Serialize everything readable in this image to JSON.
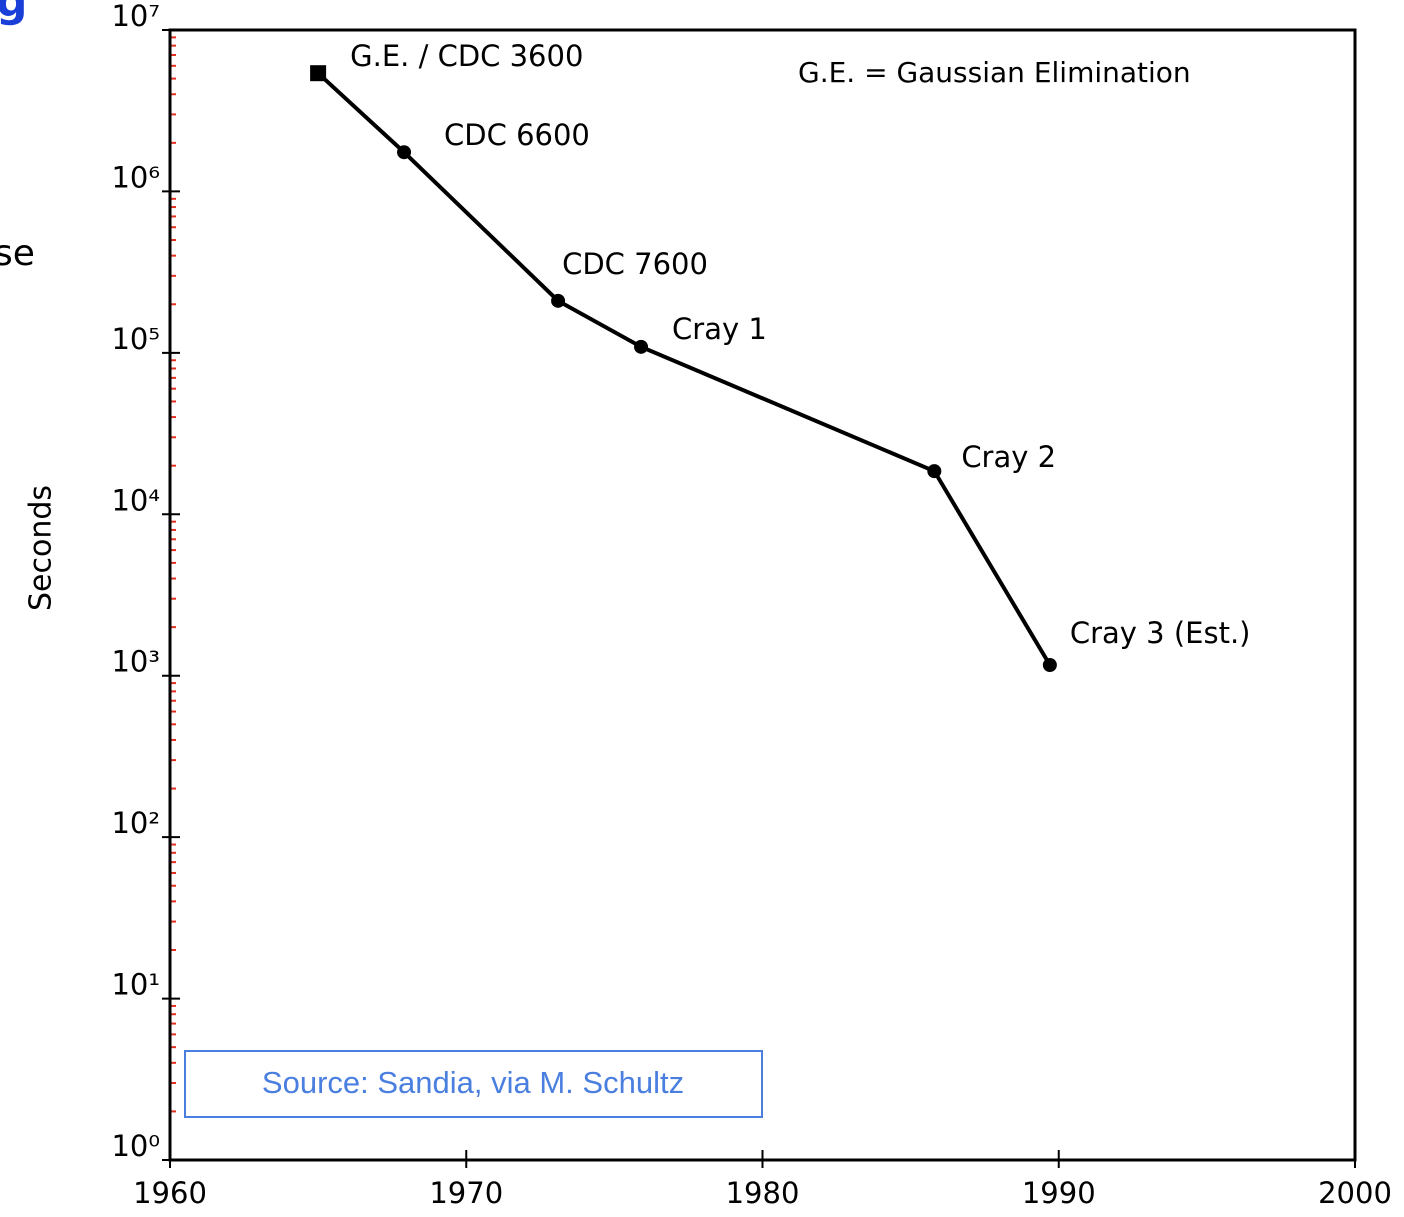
{
  "chart_data": {
    "type": "line",
    "ylabel": "Seconds",
    "annotation": "G.E. = Gaussian Elimination",
    "source": "Source: Sandia, via M. Schultz",
    "fragments": [
      "g",
      "se"
    ],
    "log_y": true,
    "color": "#000000",
    "labels": [
      "G.E. / CDC 3600",
      "CDC 6600",
      "CDC 7600",
      "Cray 1",
      "Cray 2",
      "Cray 3 (Est.)"
    ],
    "markers": [
      "square",
      "circle",
      "circle",
      "circle",
      "circle",
      "circle"
    ],
    "x": [
      1965.0,
      1967.9,
      1973.1,
      1975.9,
      1985.8,
      1989.7
    ],
    "values": [
      5400000,
      1750000,
      210000,
      109000,
      18500,
      1165
    ],
    "xlim": [
      1960,
      2000
    ],
    "xticks": [
      1960,
      1970,
      1980,
      1990,
      2000
    ],
    "ylim": [
      1,
      10000000
    ],
    "yticks": [
      {
        "value": 1,
        "label": "10⁰"
      },
      {
        "value": 10,
        "label": "10¹"
      },
      {
        "value": 100,
        "label": "10²"
      },
      {
        "value": 1000,
        "label": "10³"
      },
      {
        "value": 10000,
        "label": "10⁴"
      },
      {
        "value": 100000,
        "label": "10⁵"
      },
      {
        "value": 1000000,
        "label": "10⁶"
      },
      {
        "value": 10000000,
        "label": "10⁷"
      }
    ]
  }
}
